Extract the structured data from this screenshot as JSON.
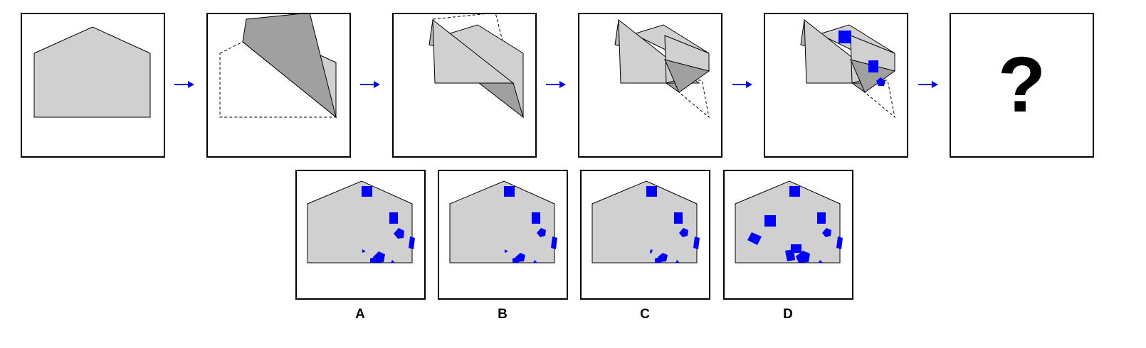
{
  "sequence": {
    "unknown_symbol": "?"
  },
  "options": [
    {
      "label": "A"
    },
    {
      "label": "B"
    },
    {
      "label": "C"
    },
    {
      "label": "D"
    }
  ],
  "colors": {
    "paper": "#d0d0d0",
    "fold": "#a0a0a0",
    "punch": "#0000ff",
    "arrow": "#0000ff",
    "outline": "#000000"
  }
}
